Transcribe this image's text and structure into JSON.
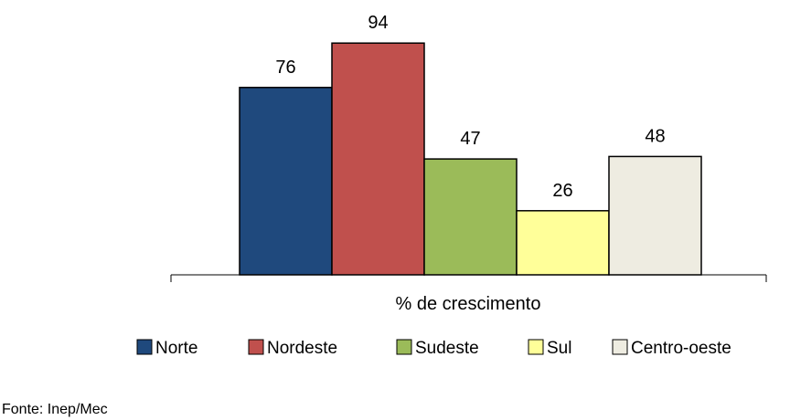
{
  "chart_data": {
    "type": "bar",
    "xlabel": "% de crescimento",
    "categories": [
      "% de crescimento"
    ],
    "series": [
      {
        "name": "Norte",
        "values": [
          76
        ],
        "color": "#1f497d"
      },
      {
        "name": "Nordeste",
        "values": [
          94
        ],
        "color": "#c0504d"
      },
      {
        "name": "Sudeste",
        "values": [
          47
        ],
        "color": "#9bbb59"
      },
      {
        "name": "Sul",
        "values": [
          26
        ],
        "color": "#ffff99"
      },
      {
        "name": "Centro-oeste",
        "values": [
          48
        ],
        "color": "#eeece1"
      }
    ],
    "ylim": [
      0,
      100
    ],
    "grid": false,
    "legend": "bottom"
  },
  "source": "Fonte: Inep/Mec"
}
